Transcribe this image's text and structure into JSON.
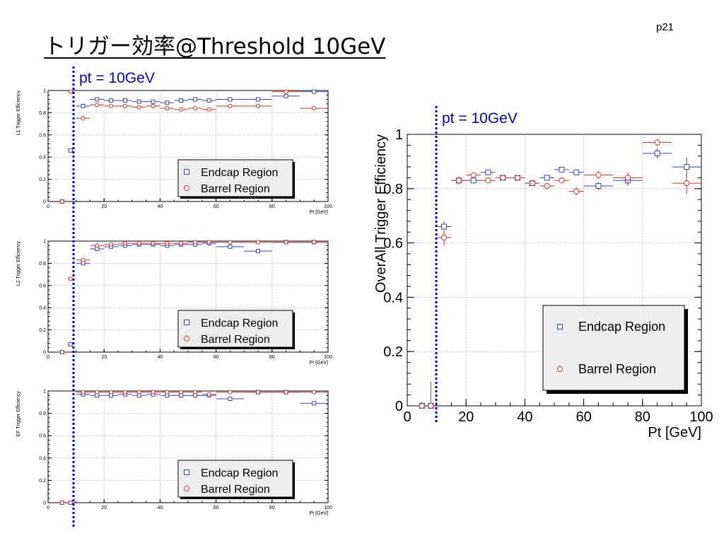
{
  "slide": {
    "title": "トリガー効率@Threshold 10GeV",
    "page_number": "p21"
  },
  "annotations": {
    "threshold_label": "pt = 10GeV",
    "threshold_value": 10,
    "line_color": "#0000cc"
  },
  "legend": {
    "endcap": "Endcap Region",
    "barrel": "Barrel Region"
  },
  "colors": {
    "endcap": "#3344cc",
    "barrel": "#dd3322",
    "grid": "#bbbbbb"
  },
  "chart_data": [
    {
      "type": "scatter",
      "title": "",
      "xlabel": "Pt [GeV]",
      "ylabel": "L1 Trigger Efficiency",
      "xlim": [
        0,
        100
      ],
      "ylim": [
        0,
        1
      ],
      "xticks": [
        0,
        20,
        40,
        60,
        80,
        100
      ],
      "yticks": [
        0,
        0.2,
        0.4,
        0.6,
        0.8,
        1
      ],
      "grid": true,
      "legend_position": "bottom-right",
      "series": [
        {
          "name": "Endcap Region",
          "x": [
            5,
            8,
            12.5,
            17.5,
            22.5,
            27.5,
            32.5,
            37.5,
            42.5,
            47.5,
            52.5,
            57.5,
            65,
            75,
            85,
            95
          ],
          "y": [
            0,
            0.46,
            0.86,
            0.92,
            0.91,
            0.91,
            0.9,
            0.9,
            0.89,
            0.91,
            0.92,
            0.91,
            0.92,
            0.92,
            0.95,
            0.99
          ],
          "xerr": [
            1,
            1,
            2.5,
            2.5,
            2.5,
            2.5,
            2.5,
            2.5,
            2.5,
            2.5,
            2.5,
            2.5,
            5,
            5,
            5,
            5
          ]
        },
        {
          "name": "Barrel Region",
          "x": [
            5,
            8,
            12.5,
            17.5,
            22.5,
            27.5,
            32.5,
            37.5,
            42.5,
            47.5,
            52.5,
            57.5,
            65,
            75,
            85,
            95
          ],
          "y": [
            0,
            0.99,
            0.75,
            0.87,
            0.86,
            0.86,
            0.85,
            0.86,
            0.84,
            0.83,
            0.84,
            0.83,
            0.86,
            0.86,
            0.99,
            0.84
          ],
          "xerr": [
            1,
            1,
            2.5,
            2.5,
            2.5,
            2.5,
            2.5,
            2.5,
            2.5,
            2.5,
            2.5,
            2.5,
            5,
            5,
            5,
            5
          ]
        }
      ]
    },
    {
      "type": "scatter",
      "title": "",
      "xlabel": "Pt [GeV]",
      "ylabel": "L2 Trigger Efficiency",
      "xlim": [
        0,
        100
      ],
      "ylim": [
        0,
        1
      ],
      "xticks": [
        0,
        20,
        40,
        60,
        80,
        100
      ],
      "yticks": [
        0,
        0.2,
        0.4,
        0.6,
        0.8,
        1
      ],
      "grid": true,
      "legend_position": "bottom-right",
      "series": [
        {
          "name": "Endcap Region",
          "x": [
            5,
            8,
            12.5,
            17.5,
            22.5,
            27.5,
            32.5,
            37.5,
            42.5,
            47.5,
            52.5,
            57.5,
            65,
            75,
            85,
            95
          ],
          "y": [
            0,
            0.07,
            0.8,
            0.93,
            0.95,
            0.96,
            0.97,
            0.97,
            0.96,
            0.97,
            0.97,
            0.98,
            0.95,
            0.91,
            0.99,
            0.99
          ],
          "xerr": [
            1,
            1,
            2.5,
            2.5,
            2.5,
            2.5,
            2.5,
            2.5,
            2.5,
            2.5,
            2.5,
            2.5,
            5,
            5,
            5,
            5
          ]
        },
        {
          "name": "Barrel Region",
          "x": [
            5,
            8,
            12.5,
            17.5,
            22.5,
            27.5,
            32.5,
            37.5,
            42.5,
            47.5,
            52.5,
            57.5,
            65,
            75,
            85,
            95
          ],
          "y": [
            0,
            0.66,
            0.83,
            0.96,
            0.97,
            0.98,
            0.98,
            0.98,
            0.98,
            0.98,
            0.99,
            0.99,
            0.99,
            0.99,
            0.99,
            0.99
          ],
          "xerr": [
            1,
            1,
            2.5,
            2.5,
            2.5,
            2.5,
            2.5,
            2.5,
            2.5,
            2.5,
            2.5,
            2.5,
            5,
            5,
            5,
            5
          ]
        }
      ]
    },
    {
      "type": "scatter",
      "title": "",
      "xlabel": "Pt [GeV]",
      "ylabel": "EF Trigger Efficiency",
      "xlim": [
        0,
        100
      ],
      "ylim": [
        0,
        1
      ],
      "xticks": [
        0,
        20,
        40,
        60,
        80,
        100
      ],
      "yticks": [
        0,
        0.2,
        0.4,
        0.6,
        0.8,
        1
      ],
      "grid": true,
      "legend_position": "bottom-right",
      "series": [
        {
          "name": "Endcap Region",
          "x": [
            5,
            8,
            12.5,
            17.5,
            22.5,
            27.5,
            32.5,
            37.5,
            42.5,
            47.5,
            52.5,
            57.5,
            65,
            75,
            85,
            95
          ],
          "y": [
            0,
            0,
            0.97,
            0.96,
            0.96,
            0.97,
            0.96,
            0.97,
            0.96,
            0.96,
            0.96,
            0.96,
            0.93,
            0.99,
            0.99,
            0.89
          ],
          "xerr": [
            1,
            1,
            2.5,
            2.5,
            2.5,
            2.5,
            2.5,
            2.5,
            2.5,
            2.5,
            2.5,
            2.5,
            5,
            5,
            5,
            5
          ]
        },
        {
          "name": "Barrel Region",
          "x": [
            5,
            8,
            12.5,
            17.5,
            22.5,
            27.5,
            32.5,
            37.5,
            42.5,
            47.5,
            52.5,
            57.5,
            65,
            75,
            85,
            95
          ],
          "y": [
            0,
            0,
            0.99,
            0.99,
            0.99,
            0.99,
            0.99,
            0.99,
            0.99,
            0.99,
            0.99,
            0.97,
            0.99,
            0.99,
            0.99,
            0.99
          ],
          "xerr": [
            1,
            1,
            2.5,
            2.5,
            2.5,
            2.5,
            2.5,
            2.5,
            2.5,
            2.5,
            2.5,
            2.5,
            5,
            5,
            5,
            5
          ]
        }
      ]
    },
    {
      "type": "scatter",
      "title": "",
      "xlabel": "Pt [GeV]",
      "ylabel": "OverAll Trigger Efficiency",
      "xlim": [
        0,
        100
      ],
      "ylim": [
        0,
        1
      ],
      "xticks": [
        0,
        20,
        40,
        60,
        80,
        100
      ],
      "yticks": [
        0,
        0.2,
        0.4,
        0.6,
        0.8,
        1
      ],
      "grid": true,
      "legend_position": "bottom-right",
      "series": [
        {
          "name": "Endcap Region",
          "x": [
            5,
            8,
            12.5,
            17.5,
            22.5,
            27.5,
            32.5,
            37.5,
            42.5,
            47.5,
            52.5,
            57.5,
            65,
            75,
            85,
            95
          ],
          "y": [
            0,
            0,
            0.66,
            0.83,
            0.83,
            0.86,
            0.84,
            0.84,
            0.82,
            0.84,
            0.87,
            0.86,
            0.81,
            0.83,
            0.93,
            0.88
          ],
          "xerr": [
            1,
            1,
            2.5,
            2.5,
            2.5,
            2.5,
            2.5,
            2.5,
            2.5,
            2.5,
            2.5,
            2.5,
            5,
            5,
            5,
            5
          ],
          "yerr": [
            0,
            0,
            0.02,
            0.01,
            0.01,
            0.01,
            0.01,
            0.01,
            0.01,
            0.01,
            0.01,
            0.01,
            0.015,
            0.02,
            0.02,
            0.035
          ]
        },
        {
          "name": "Barrel Region",
          "x": [
            5,
            8,
            12.5,
            17.5,
            22.5,
            27.5,
            32.5,
            37.5,
            42.5,
            47.5,
            52.5,
            57.5,
            65,
            75,
            85,
            95
          ],
          "y": [
            0,
            0,
            0.62,
            0.83,
            0.85,
            0.83,
            0.84,
            0.84,
            0.82,
            0.81,
            0.83,
            0.79,
            0.85,
            0.84,
            0.97,
            0.82
          ],
          "xerr": [
            1,
            1,
            2.5,
            2.5,
            2.5,
            2.5,
            2.5,
            2.5,
            2.5,
            2.5,
            2.5,
            2.5,
            5,
            5,
            5,
            5
          ],
          "yerr": [
            0,
            0.09,
            0.03,
            0.015,
            0.01,
            0.01,
            0.01,
            0.01,
            0.01,
            0.01,
            0.01,
            0.015,
            0.015,
            0.02,
            0.015,
            0.04
          ]
        }
      ]
    }
  ]
}
